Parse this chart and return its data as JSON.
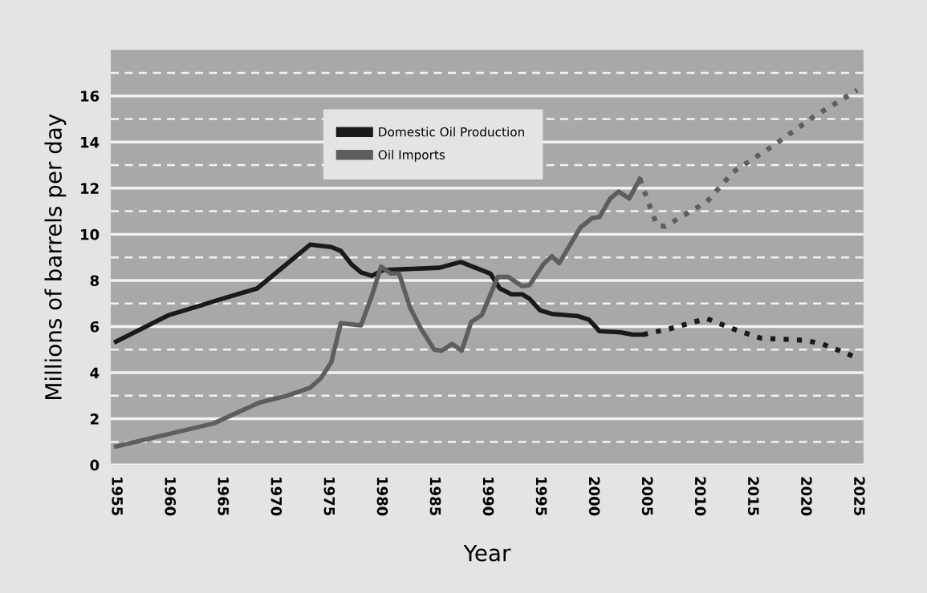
{
  "chart_data": {
    "type": "line",
    "xlabel": "Year",
    "ylabel": "Millions of barrels per day",
    "xlim": [
      1954.5,
      2025.5
    ],
    "xticks": [
      1955,
      1960,
      1965,
      1970,
      1975,
      1980,
      1985,
      1990,
      1995,
      2000,
      2005,
      2010,
      2015,
      2020,
      2025
    ],
    "ylim": [
      0,
      18
    ],
    "yticks": [
      0,
      {
        "value": 1,
        "label": null
      },
      2,
      {
        "value": 3,
        "label": null
      },
      4,
      {
        "value": 5,
        "label": null
      },
      6,
      {
        "value": 7,
        "label": null
      },
      8,
      {
        "value": 9,
        "label": null
      },
      10,
      {
        "value": 11,
        "label": null
      },
      12,
      {
        "value": 13,
        "label": null
      },
      14,
      {
        "value": 15,
        "label": null
      },
      16,
      {
        "value": 17,
        "label": null
      }
    ],
    "grid": "y",
    "legend": "top left",
    "marker": "none",
    "series": [
      {
        "name": "Domestic Oil Production",
        "color": "#1a1a1a",
        "line_style": "solid",
        "x": [
          1955,
          1960,
          1965,
          1968.3,
          1973.3,
          1975.3,
          1976.2,
          1977.2,
          1978.1,
          1979.1,
          1980.2,
          1985.5,
          1987.5,
          1990.3,
          1991.2,
          1992.3,
          1993.3,
          1994.0,
          1995.0,
          1996.1,
          1998.6,
          1999.6,
          2000.6,
          2002.6,
          2003.7,
          2004.7
        ],
        "values": [
          5.35,
          6.5,
          7.2,
          7.65,
          9.55,
          9.45,
          9.28,
          8.7,
          8.35,
          8.2,
          8.45,
          8.55,
          8.8,
          8.3,
          7.65,
          7.4,
          7.4,
          7.2,
          6.7,
          6.55,
          6.45,
          6.3,
          5.8,
          5.75,
          5.65,
          5.65
        ]
      },
      {
        "name": "Oil Imports",
        "color": "#5e5e5e",
        "line_style": "solid",
        "x": [
          1955,
          1964.2,
          1968.5,
          1971.1,
          1973.3,
          1974.3,
          1975.3,
          1976.2,
          1978.1,
          1979.1,
          1980.0,
          1980.9,
          1981.7,
          1982.7,
          1983.7,
          1985.0,
          1985.7,
          1986.7,
          1987.6,
          1988.5,
          1989.5,
          1991.0,
          1992.0,
          1993.3,
          1994.0,
          1995.3,
          1996.1,
          1996.8,
          1998.8,
          1999.9,
          2000.6,
          2001.6,
          2002.4,
          2003.4,
          2004.4
        ],
        "values": [
          0.8,
          1.8,
          2.7,
          3.0,
          3.35,
          3.75,
          4.45,
          6.15,
          6.05,
          7.3,
          8.6,
          8.3,
          8.3,
          6.85,
          5.95,
          5.0,
          4.95,
          5.25,
          4.95,
          6.2,
          6.5,
          8.15,
          8.15,
          7.75,
          7.8,
          8.7,
          9.05,
          8.75,
          10.3,
          10.7,
          10.75,
          11.55,
          11.85,
          11.55,
          12.4
        ]
      },
      {
        "color": "#1a1a1a",
        "line_style": "dotted",
        "x": [
          2004.7,
          2007.2,
          2010.7,
          2013.2,
          2015.8,
          2020.0,
          2021.6,
          2024.9
        ],
        "values": [
          5.65,
          5.9,
          6.35,
          5.9,
          5.5,
          5.4,
          5.25,
          4.65
        ]
      },
      {
        "color": "#5e5e5e",
        "line_style": "dotted",
        "x": [
          2004.4,
          2006.0,
          2006.8,
          2010.7,
          2013.2,
          2017.0,
          2020.8,
          2024.9
        ],
        "values": [
          12.4,
          10.4,
          10.35,
          11.4,
          12.7,
          13.85,
          15.1,
          16.25
        ]
      }
    ]
  }
}
